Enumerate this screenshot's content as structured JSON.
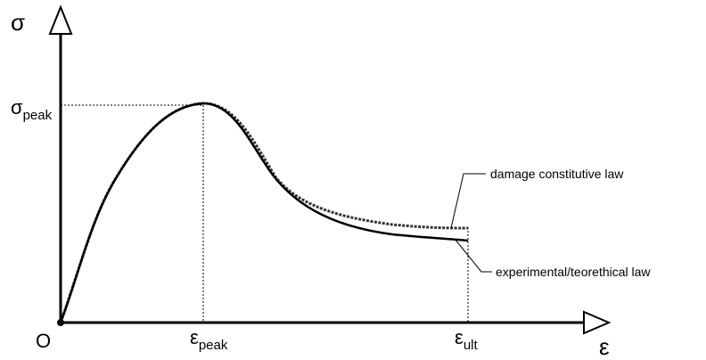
{
  "axes": {
    "y": {
      "symbol": "σ"
    },
    "x": {
      "symbol": "ε"
    },
    "origin": "O"
  },
  "levels": {
    "peak_stress": {
      "symbol": "σ",
      "subscript": "peak"
    },
    "peak_strain": {
      "symbol": "ε",
      "subscript": "peak"
    },
    "ultimate_strain": {
      "symbol": "ε",
      "subscript": "ult"
    }
  },
  "legend": {
    "damage": "damage constitutive law",
    "experimental": "experimental/teorethical law"
  }
}
